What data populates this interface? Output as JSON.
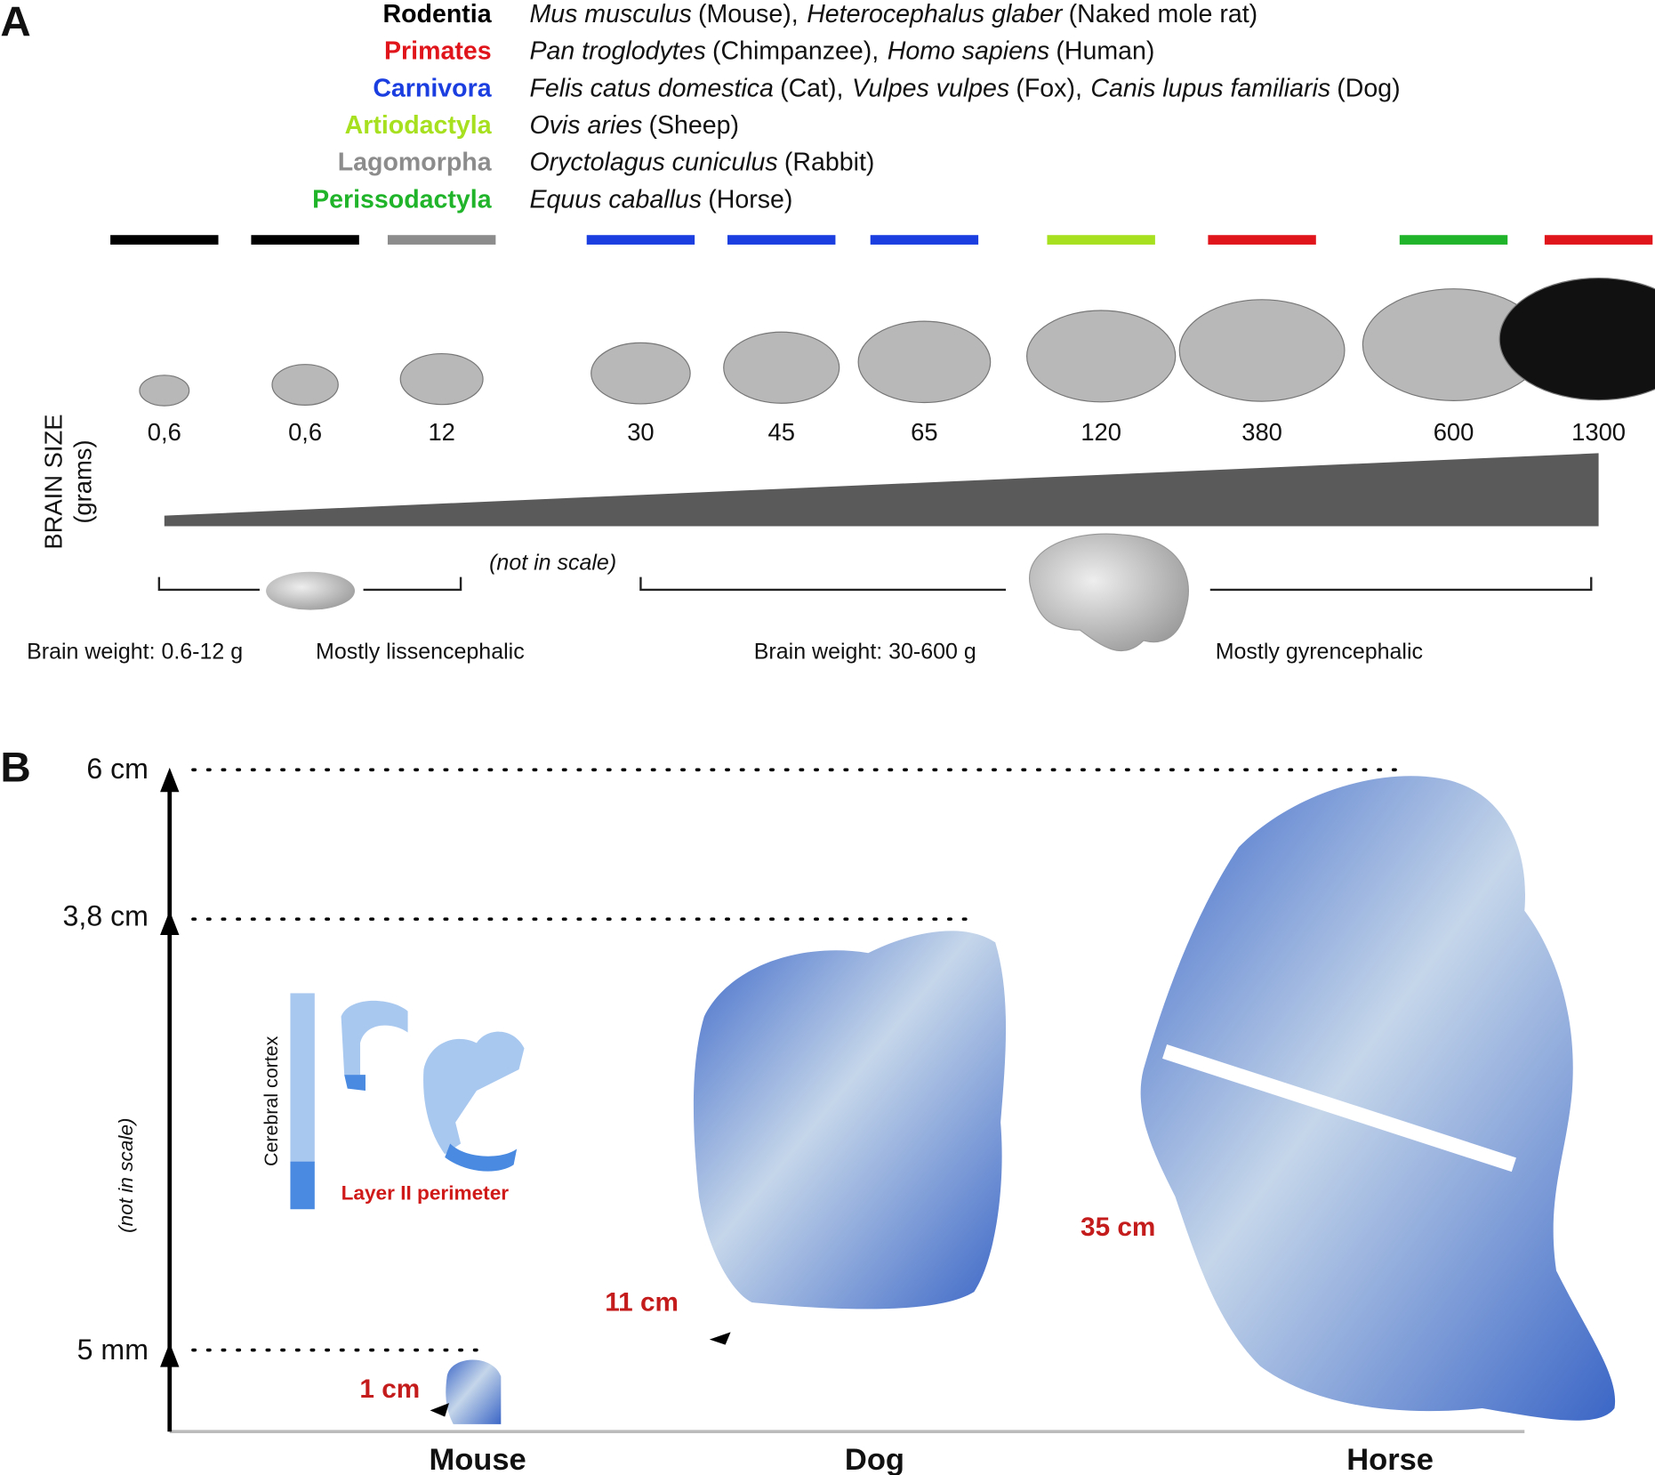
{
  "panel_a": {
    "label": "A",
    "orders": [
      {
        "name": "Rodentia",
        "color": "#000000",
        "species": [
          {
            "latin": "Mus musculus",
            "common": "(Mouse),"
          },
          {
            "latin": "Heterocephalus glaber",
            "common": "(Naked mole rat)"
          }
        ]
      },
      {
        "name": "Primates",
        "color": "#e0141b",
        "species": [
          {
            "latin": "Pan troglodytes",
            "common": "(Chimpanzee),"
          },
          {
            "latin": "Homo sapiens",
            "common": "(Human)"
          }
        ]
      },
      {
        "name": "Carnivora",
        "color": "#1a3ee0",
        "species": [
          {
            "latin": "Felis catus domestica",
            "common": "(Cat),"
          },
          {
            "latin": "Vulpes vulpes",
            "common": "(Fox),"
          },
          {
            "latin": "Canis lupus familiaris",
            "common": "(Dog)"
          }
        ]
      },
      {
        "name": "Artiodactyla",
        "color": "#a6e01e",
        "species": [
          {
            "latin": "Ovis aries",
            "common": "(Sheep)"
          }
        ]
      },
      {
        "name": "Lagomorpha",
        "color": "#8c8c8c",
        "species": [
          {
            "latin": "Oryctolagus cuniculus",
            "common": "(Rabbit)"
          }
        ]
      },
      {
        "name": "Perissodactyla",
        "color": "#20b42a",
        "species": [
          {
            "latin": "Equus caballus",
            "common": "(Horse)"
          }
        ]
      }
    ],
    "animals": [
      {
        "bar_color": "#000000",
        "brain_size": "0,6"
      },
      {
        "bar_color": "#000000",
        "brain_size": "0,6"
      },
      {
        "bar_color": "#8c8c8c",
        "brain_size": "12"
      },
      {
        "bar_color": "#1a3ee0",
        "brain_size": "30"
      },
      {
        "bar_color": "#1a3ee0",
        "brain_size": "45"
      },
      {
        "bar_color": "#1a3ee0",
        "brain_size": "65"
      },
      {
        "bar_color": "#a6e01e",
        "brain_size": "120"
      },
      {
        "bar_color": "#e0141b",
        "brain_size": "380"
      },
      {
        "bar_color": "#20b42a",
        "brain_size": "600"
      },
      {
        "bar_color": "#e0141b",
        "brain_size": "1300"
      }
    ],
    "axis_title": "BRAIN SIZE",
    "axis_unit": "(grams)",
    "not_in_scale": "(not in scale)",
    "small_weight": "Brain weight: 0.6-12 g",
    "small_type": "Mostly lissencephalic",
    "large_weight": "Brain weight: 30-600 g",
    "large_type": "Mostly gyrencephalic"
  },
  "panel_b": {
    "label": "B",
    "heights": [
      "6 cm",
      "3,8 cm",
      "5 mm"
    ],
    "axis_note": "(not in scale)",
    "inset_axis": "Cerebral cortex",
    "inset_label": "Layer II perimeter",
    "brains": [
      {
        "species": "Mouse",
        "perimeter": "1 cm"
      },
      {
        "species": "Dog",
        "perimeter": "11 cm"
      },
      {
        "species": "Horse",
        "perimeter": "35 cm"
      }
    ]
  }
}
